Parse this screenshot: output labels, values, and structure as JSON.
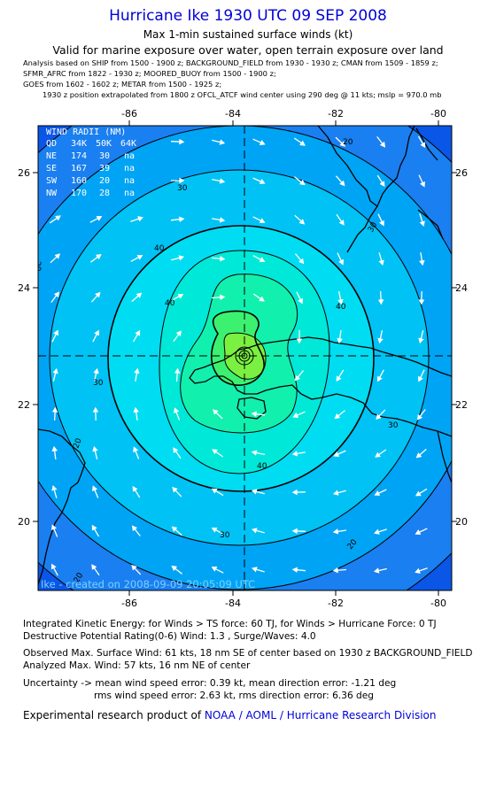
{
  "header": {
    "title": "Hurricane Ike 1930 UTC 09 SEP 2008",
    "subtitle": "Max 1-min sustained surface winds (kt)",
    "validity": "Valid for marine exposure over water, open terrain exposure over land",
    "analysis_lines": [
      "Analysis based on  SHIP from 1500 - 1900 z;  BACKGROUND_FIELD from 1930 - 1930 z;  CMAN from 1509 - 1859 z;",
      "SFMR_AFRC from 1822 - 1930 z;  MOORED_BUOY from 1500 - 1900 z;",
      "GOES from 1602 - 1602 z;  METAR from 1500 - 1925 z;"
    ],
    "position_note": "1930 z position extrapolated from 1800 z OFCL_ATCF wind center using 290 deg @ 11 kts; mslp = 970.0 mb"
  },
  "map": {
    "lon_ticks": [
      "-86",
      "-84",
      "-82",
      "-80"
    ],
    "lat_ticks": [
      "26",
      "24",
      "22",
      "20"
    ],
    "lon_range": [
      -87.7,
      -79.5
    ],
    "lat_range": [
      18.8,
      27.0
    ],
    "center": {
      "lon": -83.6,
      "lat": 22.8
    },
    "wind_radii": {
      "title": "WIND RADII (NM)",
      "columns": [
        "QD",
        "34K",
        "50K",
        "64K"
      ],
      "rows": [
        [
          "NE",
          "174",
          "30",
          "na"
        ],
        [
          "SE",
          "167",
          "39",
          "na"
        ],
        [
          "SW",
          "160",
          "20",
          "na"
        ],
        [
          "NW",
          "170",
          "28",
          "na"
        ]
      ]
    },
    "contour_labels": [
      "20",
      "30",
      "40",
      "20",
      "30",
      "40",
      "30",
      "40",
      "20",
      "30",
      "40",
      "30",
      "20",
      "20"
    ],
    "watermark": "Ike - created on 2008-09-09 20:05:09 UTC",
    "colors": {
      "ring_20": "#1a7ff0",
      "ring_25": "#00a4f5",
      "ring_30": "#00c2f5",
      "ring_35": "#00dcf2",
      "ring_40": "#00e8d8",
      "ring_45": "#12f0ae",
      "ring_50": "#3cf070",
      "ring_55": "#7af040",
      "outer": "#0a56e6"
    }
  },
  "stats": {
    "ike": "Integrated Kinetic Energy:  for Winds > TS force: 60 TJ,  for Winds > Hurricane Force: 0 TJ",
    "dpr": "Destructive Potential Rating(0-6)   Wind: 1.3 , Surge/Waves: 4.0",
    "obs_max": "Observed Max. Surface Wind: 61 kts, 18 nm SE of center based on 1930 z BACKGROUND_FIELD",
    "analyzed_max": "Analyzed Max. Wind: 57 kts, 16 nm NE of center",
    "uncertainty_1": "Uncertainty -> mean wind speed error: 0.39 kt,   mean direction error:  -1.21 deg",
    "uncertainty_2": "rms wind speed error: 2.63 kt,   rms direction error: 6.36 deg"
  },
  "credit": {
    "prefix": "Experimental research product of ",
    "org": "NOAA / AOML / Hurricane Research Division"
  }
}
